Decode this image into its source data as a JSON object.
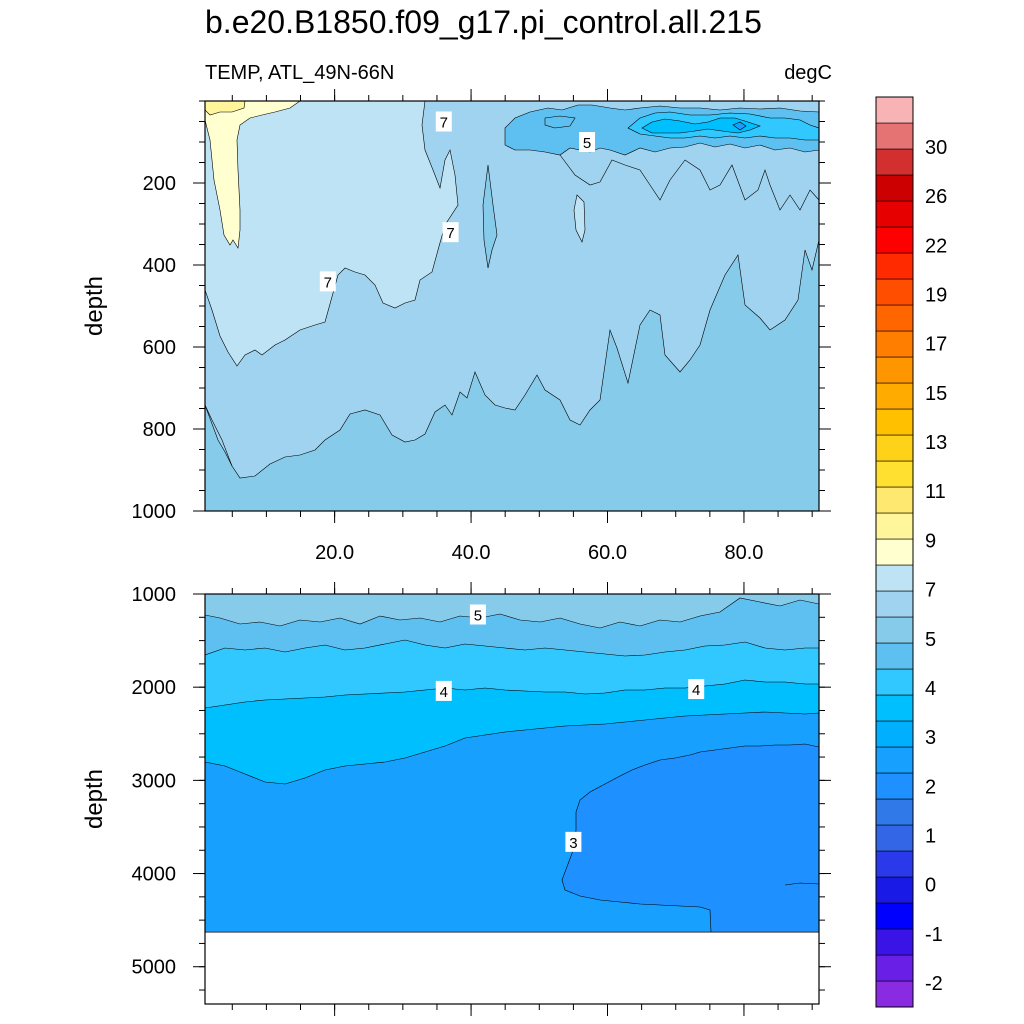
{
  "title": "b.e20.B1850.f09_g17.pi_control.all.215",
  "left_string": "TEMP, ATL_49N-66N",
  "right_string": "degC",
  "colors": {
    "levels_low_to_high": [
      "#8a2be2",
      "#6a1fe6",
      "#3a14e6",
      "#0000ff",
      "#1a1ae6",
      "#2a3aea",
      "#3366e6",
      "#2f7ae8",
      "#1e90ff",
      "#18a0ff",
      "#00b0ff",
      "#00bfff",
      "#30c8ff",
      "#5ec0f0",
      "#87cbeb",
      "#9fd3ef",
      "#bde3f4",
      "#ffffd0",
      "#fff59a",
      "#ffe870",
      "#ffe030",
      "#ffd21a",
      "#ffc000",
      "#ffab00",
      "#ff9600",
      "#ff7e00",
      "#ff6600",
      "#ff4e00",
      "#ff2a00",
      "#ff0000",
      "#e60000",
      "#cc0000",
      "#d32f2f",
      "#e57373",
      "#f8b4b4"
    ]
  },
  "chart_data": [
    {
      "type": "heatmap",
      "panel": "upper",
      "ylabel": "depth",
      "xlabel": "",
      "x_ticks": [
        "20.0",
        "40.0",
        "60.0",
        "80.0"
      ],
      "x_tick_values": [
        20,
        40,
        60,
        80
      ],
      "xlim": [
        1,
        91
      ],
      "y_ticks": [
        "200",
        "400",
        "600",
        "800",
        "1000"
      ],
      "y_tick_values": [
        200,
        400,
        600,
        800,
        1000
      ],
      "ylim": [
        0,
        1000
      ],
      "y_reversed": true,
      "contour_labels": [
        "7",
        "5",
        "7",
        "7"
      ],
      "contour_label_positions": [
        [
          36,
          50
        ],
        [
          57,
          100
        ],
        [
          37,
          320
        ],
        [
          19,
          440
        ]
      ]
    },
    {
      "type": "heatmap",
      "panel": "lower",
      "ylabel": "depth",
      "xlabel": "",
      "xlim": [
        1,
        91
      ],
      "y_ticks": [
        "1000",
        "2000",
        "3000",
        "4000",
        "5000"
      ],
      "y_tick_values": [
        1000,
        2000,
        3000,
        4000,
        5000
      ],
      "ylim": [
        1000,
        5400
      ],
      "y_reversed": true,
      "contour_labels": [
        "5",
        "4",
        "4",
        "3"
      ],
      "contour_label_positions": [
        [
          41,
          1220
        ],
        [
          36,
          2040
        ],
        [
          73,
          2020
        ],
        [
          55,
          3660
        ]
      ]
    }
  ],
  "colorbar": {
    "labels": [
      "30",
      "26",
      "22",
      "19",
      "17",
      "15",
      "13",
      "11",
      "9",
      "7",
      "5",
      "4",
      "3",
      "2",
      "1",
      "0",
      "-1",
      "-2"
    ]
  }
}
